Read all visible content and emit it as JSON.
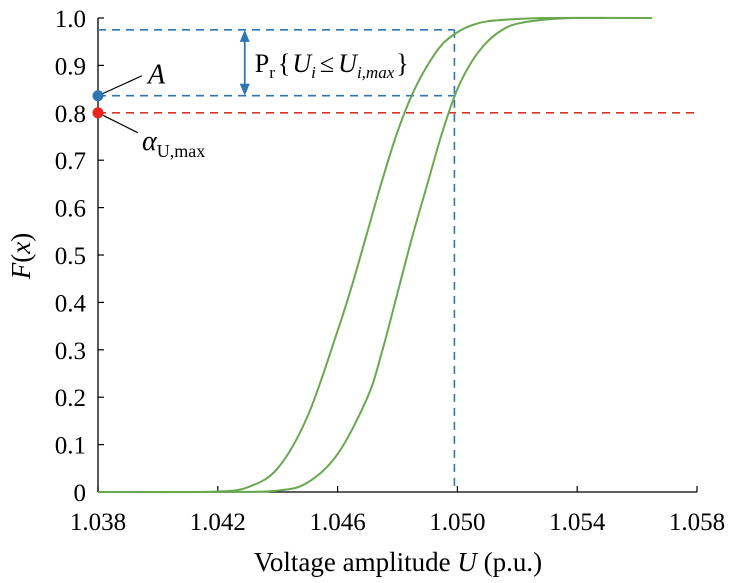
{
  "chart_data": {
    "type": "line",
    "title": "",
    "xlabel": "Voltage amplitude U (p.u.)",
    "xlabel_parts": {
      "pre": "Voltage amplitude ",
      "var": "U",
      "post": " (p.u.)"
    },
    "ylabel": "F(x)",
    "ylabel_parts": {
      "var": "F",
      "post": "(",
      "arg": "x",
      "close": ")"
    },
    "xlim": [
      1.038,
      1.058
    ],
    "ylim": [
      0,
      1.0
    ],
    "x_ticks": [
      1.038,
      1.042,
      1.046,
      1.05,
      1.054,
      1.058
    ],
    "x_tick_labels": [
      "1.038",
      "1.042",
      "1.046",
      "1.050",
      "1.054",
      "1.058"
    ],
    "y_ticks": [
      0,
      0.1,
      0.2,
      0.3,
      0.4,
      0.5,
      0.6,
      0.7,
      0.8,
      0.9,
      1.0
    ],
    "y_tick_labels": [
      "0",
      "0.1",
      "0.2",
      "0.3",
      "0.4",
      "0.5",
      "0.6",
      "0.7",
      "0.8",
      "0.9",
      "1.0"
    ],
    "grid": false,
    "series": [
      {
        "color": "#6aa84f",
        "points": [
          [
            1.038,
            0.0
          ],
          [
            1.04,
            0.0
          ],
          [
            1.042,
            0.001
          ],
          [
            1.043,
            0.01
          ],
          [
            1.044,
            0.05
          ],
          [
            1.045,
            0.16
          ],
          [
            1.046,
            0.34
          ],
          [
            1.0465,
            0.44
          ],
          [
            1.047,
            0.55
          ],
          [
            1.0475,
            0.66
          ],
          [
            1.048,
            0.76
          ],
          [
            1.0485,
            0.84
          ],
          [
            1.049,
            0.9
          ],
          [
            1.0495,
            0.945
          ],
          [
            1.05,
            0.97
          ],
          [
            1.0505,
            0.985
          ],
          [
            1.051,
            0.993
          ],
          [
            1.052,
            0.998
          ],
          [
            1.053,
            1.0
          ],
          [
            1.055,
            1.0
          ]
        ]
      },
      {
        "color": "#6aa84f",
        "points": [
          [
            1.038,
            0.0
          ],
          [
            1.042,
            0.0
          ],
          [
            1.044,
            0.003
          ],
          [
            1.045,
            0.02
          ],
          [
            1.046,
            0.08
          ],
          [
            1.047,
            0.2
          ],
          [
            1.0475,
            0.3
          ],
          [
            1.048,
            0.42
          ],
          [
            1.0485,
            0.54
          ],
          [
            1.049,
            0.65
          ],
          [
            1.0495,
            0.76
          ],
          [
            1.05,
            0.85
          ],
          [
            1.0505,
            0.91
          ],
          [
            1.051,
            0.95
          ],
          [
            1.0515,
            0.975
          ],
          [
            1.052,
            0.988
          ],
          [
            1.053,
            0.997
          ],
          [
            1.054,
            1.0
          ],
          [
            1.0565,
            1.0
          ]
        ]
      }
    ],
    "reference_lines": {
      "upper_blue_y": 0.975,
      "lower_blue_y": 0.836,
      "red_y": 0.8,
      "vertical_blue_x": 1.0499,
      "blue_color": "#2e75b6",
      "red_color": "#d9352a"
    },
    "markers": {
      "A": {
        "label": "A",
        "x": 1.038,
        "y": 0.836,
        "color": "#2e75b6"
      },
      "alpha": {
        "label_greek": "α",
        "label_sub": "U,max",
        "x": 1.038,
        "y": 0.8,
        "color": "#e8251f"
      }
    },
    "interval_annotation": {
      "x": 1.0429,
      "y_top": 0.975,
      "y_bottom": 0.836,
      "label_P": "P",
      "label_r": "r",
      "label_open": "{",
      "label_U1": "U",
      "label_i1": "i",
      "label_le": "≤",
      "label_U2": "U",
      "label_i2": "i,max",
      "label_close": "}"
    }
  }
}
